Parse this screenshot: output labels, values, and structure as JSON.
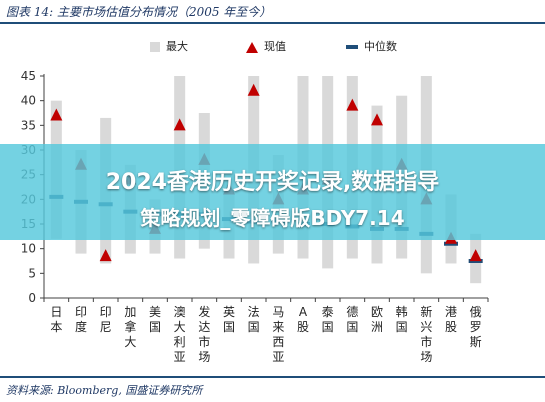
{
  "header": {
    "title": "图表 14:  主要市场估值分布情况（2005 年至今）"
  },
  "legend": {
    "max": "最大",
    "current": "现值",
    "median": "中位数"
  },
  "banner": {
    "line1": "2024香港历史开奖记录,数据指导",
    "line2": "策略规划_零障碍版BDY7.14"
  },
  "footer": {
    "source": "资料来源:  Bloomberg,  国盛证券研究所"
  },
  "chart_data": {
    "type": "range",
    "categories": [
      "日本",
      "印度",
      "印尼",
      "加拿大",
      "美国",
      "澳大利亚",
      "发达市场",
      "英国",
      "法国",
      "马来西亚",
      "A股",
      "泰国",
      "德国",
      "欧洲",
      "韩国",
      "新兴市场",
      "港股",
      "俄罗斯"
    ],
    "series": [
      {
        "name": "最大",
        "max": [
          40,
          30,
          36.5,
          27,
          20,
          45,
          37.5,
          26,
          45,
          29,
          45,
          45,
          45,
          39,
          41,
          45,
          21,
          13
        ]
      },
      {
        "name": "min",
        "min": [
          12,
          9,
          7,
          9,
          9,
          8,
          10,
          8,
          7,
          9,
          8,
          6,
          8,
          7,
          8,
          5,
          7,
          3
        ]
      },
      {
        "name": "现值",
        "values": [
          37,
          27,
          8.5,
          24,
          14,
          35,
          28,
          22,
          42,
          20,
          22,
          24,
          39,
          36,
          27,
          20,
          12,
          8.5
        ]
      },
      {
        "name": "中位数",
        "values": [
          20.5,
          19.5,
          19,
          17.5,
          17,
          17,
          17,
          16,
          15.5,
          15.5,
          15,
          15,
          14.5,
          14,
          14,
          13,
          11,
          7.5
        ]
      }
    ],
    "yticks": [
      0,
      5,
      10,
      15,
      20,
      25,
      30,
      35,
      40,
      45
    ],
    "ylim": [
      0,
      45
    ],
    "colors": {
      "range": "#d9d9d9",
      "current": "#c00000",
      "median": "#1f4e79",
      "axis": "#404040"
    }
  }
}
